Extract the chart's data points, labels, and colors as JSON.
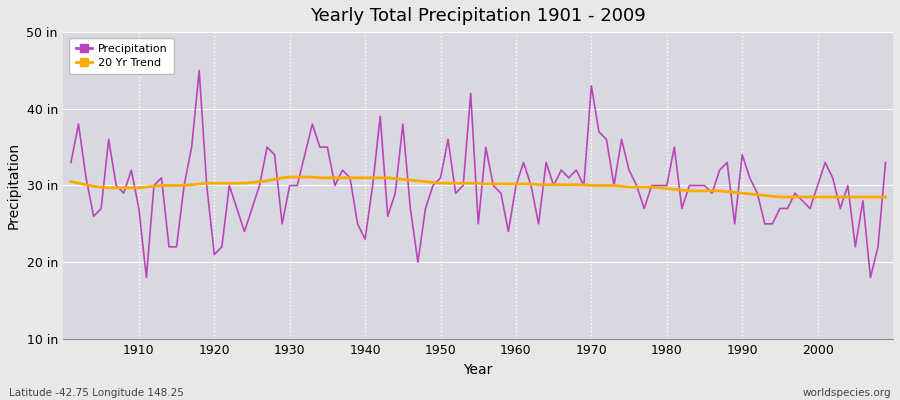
{
  "title": "Yearly Total Precipitation 1901 - 2009",
  "xlabel": "Year",
  "ylabel": "Precipitation",
  "lat_lon_label": "Latitude -42.75 Longitude 148.25",
  "watermark": "worldspecies.org",
  "ylim": [
    10,
    50
  ],
  "yticks": [
    10,
    20,
    30,
    40,
    50
  ],
  "ytick_labels": [
    "10 in",
    "20 in",
    "30 in",
    "40 in",
    "50 in"
  ],
  "xlim": [
    1900,
    2010
  ],
  "xticks": [
    1910,
    1920,
    1930,
    1940,
    1950,
    1960,
    1970,
    1980,
    1990,
    2000
  ],
  "precip_color": "#bb44bb",
  "trend_color": "#ffaa00",
  "fig_bg_color": "#e8e8e8",
  "plot_bg_color": "#d8d8e0",
  "grid_color": "#ffffff",
  "legend_entries": [
    "Precipitation",
    "20 Yr Trend"
  ],
  "years": [
    1901,
    1902,
    1903,
    1904,
    1905,
    1906,
    1907,
    1908,
    1909,
    1910,
    1911,
    1912,
    1913,
    1914,
    1915,
    1916,
    1917,
    1918,
    1919,
    1920,
    1921,
    1922,
    1923,
    1924,
    1925,
    1926,
    1927,
    1928,
    1929,
    1930,
    1931,
    1932,
    1933,
    1934,
    1935,
    1936,
    1937,
    1938,
    1939,
    1940,
    1941,
    1942,
    1943,
    1944,
    1945,
    1946,
    1947,
    1948,
    1949,
    1950,
    1951,
    1952,
    1953,
    1954,
    1955,
    1956,
    1957,
    1958,
    1959,
    1960,
    1961,
    1962,
    1963,
    1964,
    1965,
    1966,
    1967,
    1968,
    1969,
    1970,
    1971,
    1972,
    1973,
    1974,
    1975,
    1976,
    1977,
    1978,
    1979,
    1980,
    1981,
    1982,
    1983,
    1984,
    1985,
    1986,
    1987,
    1988,
    1989,
    1990,
    1991,
    1992,
    1993,
    1994,
    1995,
    1996,
    1997,
    1998,
    1999,
    2000,
    2001,
    2002,
    2003,
    2004,
    2005,
    2006,
    2007,
    2008,
    2009
  ],
  "precip": [
    33,
    38,
    31,
    26,
    27,
    36,
    30,
    29,
    32,
    27,
    18,
    30,
    31,
    22,
    22,
    30,
    35,
    45,
    30,
    21,
    22,
    30,
    27,
    24,
    27,
    30,
    35,
    34,
    25,
    30,
    30,
    34,
    38,
    35,
    35,
    30,
    32,
    31,
    25,
    23,
    30,
    39,
    26,
    29,
    38,
    27,
    20,
    27,
    30,
    31,
    36,
    29,
    30,
    42,
    25,
    35,
    30,
    29,
    24,
    30,
    33,
    30,
    25,
    33,
    30,
    32,
    31,
    32,
    30,
    43,
    37,
    36,
    30,
    36,
    32,
    30,
    27,
    30,
    30,
    30,
    35,
    27,
    30,
    30,
    30,
    29,
    32,
    33,
    25,
    34,
    31,
    29,
    25,
    25,
    27,
    27,
    29,
    28,
    27,
    30,
    33,
    31,
    27,
    30,
    22,
    28,
    18,
    22,
    33
  ],
  "trend": [
    30.5,
    30.3,
    30.1,
    29.9,
    29.8,
    29.7,
    29.7,
    29.7,
    29.7,
    29.7,
    29.8,
    29.9,
    30.0,
    30.0,
    30.0,
    30.0,
    30.1,
    30.2,
    30.3,
    30.3,
    30.3,
    30.3,
    30.3,
    30.3,
    30.4,
    30.5,
    30.6,
    30.8,
    31.0,
    31.1,
    31.1,
    31.1,
    31.1,
    31.0,
    31.0,
    31.0,
    31.0,
    31.0,
    31.0,
    31.0,
    31.0,
    31.0,
    31.0,
    30.9,
    30.8,
    30.7,
    30.6,
    30.5,
    30.4,
    30.3,
    30.3,
    30.3,
    30.3,
    30.3,
    30.3,
    30.2,
    30.2,
    30.2,
    30.2,
    30.2,
    30.2,
    30.2,
    30.1,
    30.1,
    30.1,
    30.1,
    30.1,
    30.1,
    30.1,
    30.0,
    30.0,
    30.0,
    30.0,
    29.9,
    29.8,
    29.8,
    29.8,
    29.8,
    29.7,
    29.6,
    29.5,
    29.4,
    29.3,
    29.3,
    29.3,
    29.3,
    29.3,
    29.2,
    29.1,
    29.0,
    28.9,
    28.8,
    28.7,
    28.6,
    28.5,
    28.5,
    28.5,
    28.5,
    28.5,
    28.5,
    28.5,
    28.5,
    28.5,
    28.5,
    28.5,
    28.5,
    28.5,
    28.5,
    28.5
  ]
}
